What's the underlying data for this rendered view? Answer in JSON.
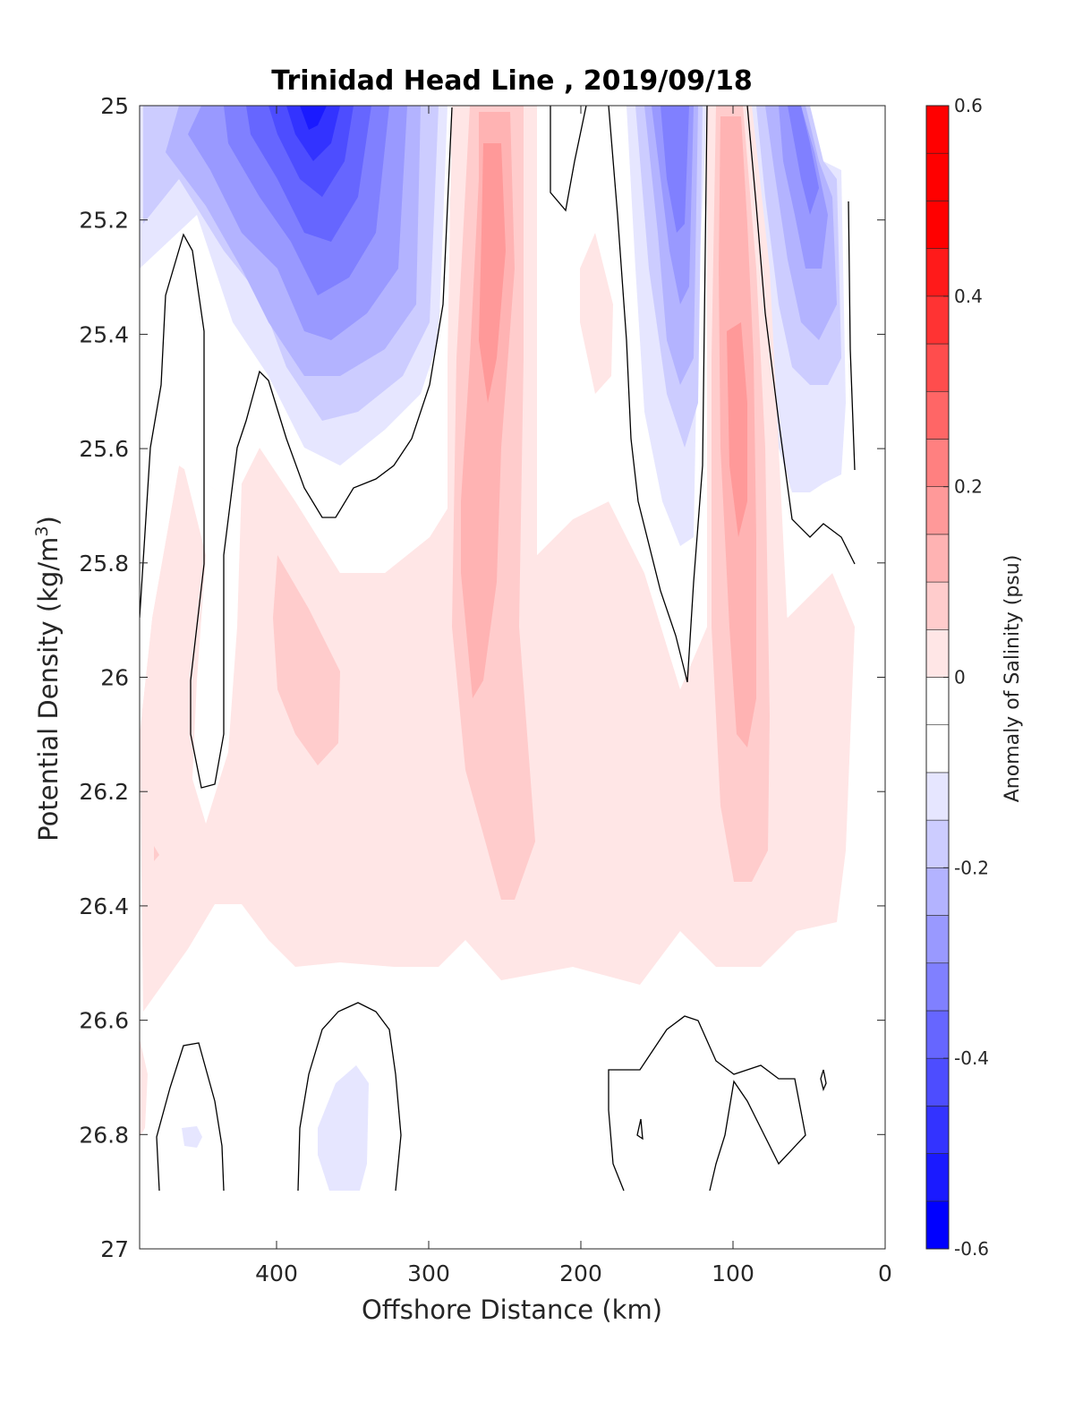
{
  "chart_data": {
    "type": "contour",
    "title": "Trinidad Head Line , 2019/09/18",
    "xlabel": "Offshore Distance (km)",
    "ylabel_main": "Potential Density (kg/m",
    "ylabel_sup": "3",
    "ylabel_close": ")",
    "xlim": [
      490,
      0
    ],
    "ylim": [
      25,
      27
    ],
    "y_reversed": true,
    "x_ticks": [
      400,
      300,
      200,
      100,
      0
    ],
    "x_tick_labels": [
      "400",
      "300",
      "200",
      "100",
      "0"
    ],
    "y_ticks": [
      25,
      25.2,
      25.4,
      25.6,
      25.8,
      26,
      26.2,
      26.4,
      26.6,
      26.8,
      27
    ],
    "y_tick_labels": [
      "25",
      "25.2",
      "25.4",
      "25.6",
      "25.8",
      "26",
      "26.2",
      "26.4",
      "26.6",
      "26.8",
      "27"
    ],
    "colorbar": {
      "label": "Anomaly of Salinity (psu)",
      "range": [
        -0.6,
        0.6
      ],
      "step": 0.05,
      "ticks": [
        0.6,
        0.4,
        0.2,
        0,
        -0.2,
        -0.4,
        -0.6
      ],
      "tick_labels": [
        "0.6",
        "0.4",
        "0.2",
        "0",
        "-0.2",
        "-0.4",
        "-0.6"
      ],
      "colors_from_bottom": [
        "#0000ff",
        "#1a1aff",
        "#3333ff",
        "#4d4dff",
        "#6666ff",
        "#8080ff",
        "#9999ff",
        "#b3b3ff",
        "#ccccff",
        "#e6e6ff",
        "#ffffff",
        "#ffffff",
        "#ffe6e6",
        "#ffcccc",
        "#ffb3b3",
        "#ff9999",
        "#ff8080",
        "#ff6666",
        "#ff4d4d",
        "#ff3333",
        "#ff1a1a",
        "#ff0000",
        "#ff0000",
        "#ff0000"
      ]
    },
    "features": [
      {
        "kind": "negative_anomaly",
        "x_center_km": 375,
        "y_top": 25.0,
        "y_bottom": 25.6,
        "min_value": -0.5
      },
      {
        "kind": "negative_anomaly",
        "x_center_km": 140,
        "y_top": 25.0,
        "y_bottom": 25.75,
        "min_value": -0.35
      },
      {
        "kind": "negative_anomaly",
        "x_center_km": 50,
        "y_top": 25.0,
        "y_bottom": 25.65,
        "min_value": -0.3
      },
      {
        "kind": "positive_anomaly",
        "x_center_km": 255,
        "y_top": 25.0,
        "y_bottom": 26.4,
        "max_value": 0.15
      },
      {
        "kind": "positive_anomaly",
        "x_center_km": 95,
        "y_top": 25.0,
        "y_bottom": 26.35,
        "max_value": 0.15
      },
      {
        "kind": "positive_anomaly",
        "x_center_km": 360,
        "y_top": 25.8,
        "y_bottom": 26.1,
        "max_value": 0.1
      },
      {
        "kind": "positive_band",
        "x_from_km": 490,
        "x_to_km": 20,
        "y_top": 25.6,
        "y_bottom": 26.55,
        "max_value": 0.1
      },
      {
        "kind": "negative_anomaly",
        "x_center_km": 345,
        "y_top": 26.7,
        "y_bottom": 26.9,
        "min_value": -0.1
      }
    ]
  }
}
